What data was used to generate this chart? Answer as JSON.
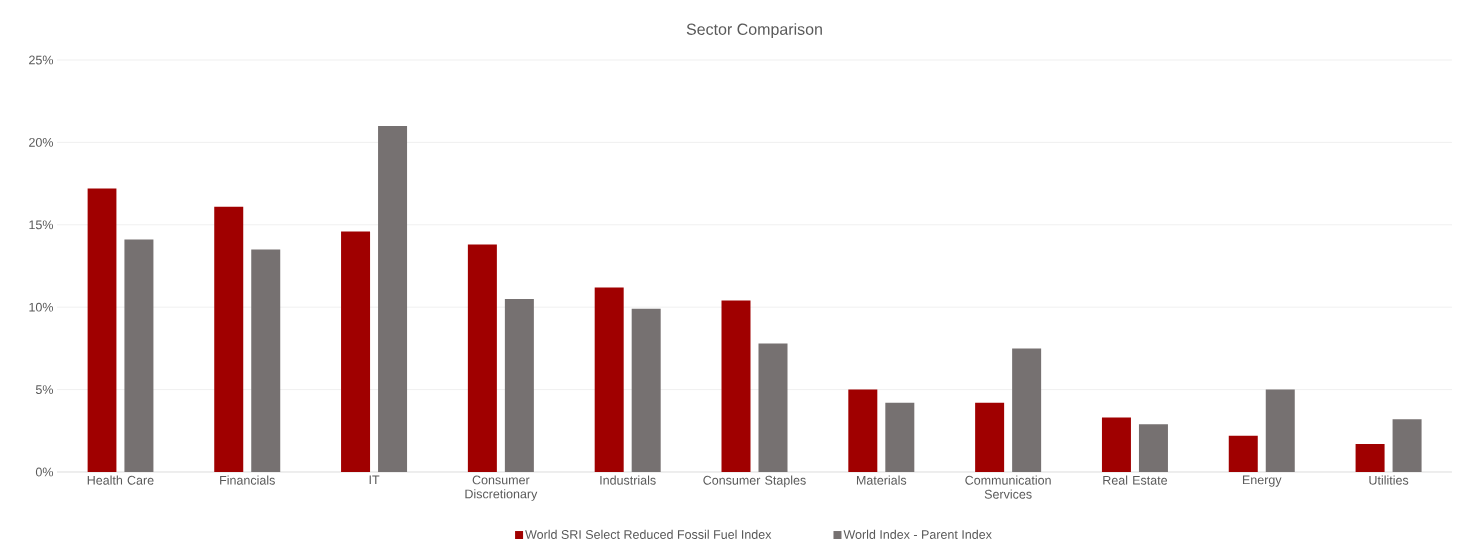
{
  "chart_data": {
    "type": "bar",
    "title": "Sector Comparison",
    "categories": [
      "Health Care",
      "Financials",
      "IT",
      "Consumer Discretionary",
      "Industrials",
      "Consumer Staples",
      "Materials",
      "Communication Services",
      "Real Estate",
      "Energy",
      "Utilities"
    ],
    "series": [
      {
        "name": "World SRI Select Reduced Fossil Fuel Index",
        "color": "#a00000",
        "values": [
          17.2,
          16.1,
          14.6,
          13.8,
          11.2,
          10.4,
          5.0,
          4.2,
          3.3,
          2.2,
          1.7
        ]
      },
      {
        "name": "World Index - Parent Index",
        "color": "#767171",
        "values": [
          14.1,
          13.5,
          21.0,
          10.5,
          9.9,
          7.8,
          4.2,
          7.5,
          2.9,
          5.0,
          3.2
        ]
      }
    ],
    "ylim": [
      0,
      25
    ],
    "yticks": [
      {
        "value": 0,
        "label": "0%"
      },
      {
        "value": 5,
        "label": "5%"
      },
      {
        "value": 10,
        "label": "10%"
      },
      {
        "value": 15,
        "label": "15%"
      },
      {
        "value": 20,
        "label": "20%"
      },
      {
        "value": 25,
        "label": "25%"
      }
    ],
    "grid": "y",
    "legend": "bottom"
  }
}
